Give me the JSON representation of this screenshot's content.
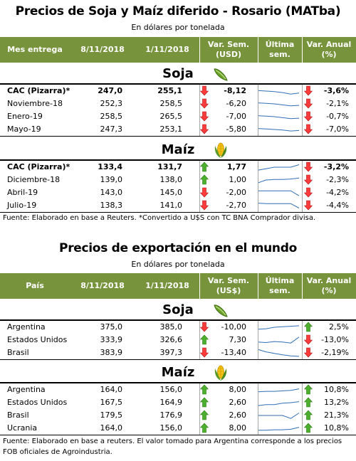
{
  "t1": {
    "title": "Precios de Soja y Maíz diferido - Rosario (MATba)",
    "subtitle": "En dólares por tonelada",
    "headers": [
      "Mes entrega",
      "8/11/2018",
      "1/11/2018",
      "Var. Sem.\n(USD)",
      "Última\nsem.",
      "Var. Anual\n(%)"
    ],
    "soja_label": "Soja",
    "maiz_label": "Maíz",
    "soja_rows": [
      {
        "name": "CAC (Pizarra)*",
        "d1": "247,0",
        "d2": "255,1",
        "var": "-8,12",
        "var_dir": "down",
        "ann": "-3,6%",
        "ann_dir": "down",
        "spark": [
          0.55,
          0.5,
          0.45,
          0.35,
          0.2,
          0.3
        ],
        "bold": true
      },
      {
        "name": "Noviembre-18",
        "d1": "252,3",
        "d2": "258,5",
        "var": "-6,20",
        "var_dir": "down",
        "ann": "-2,1%",
        "ann_dir": "down",
        "spark": [
          0.6,
          0.55,
          0.5,
          0.4,
          0.3,
          0.35
        ],
        "bold": false
      },
      {
        "name": "Enero-19",
        "d1": "258,5",
        "d2": "265,5",
        "var": "-7,00",
        "var_dir": "down",
        "ann": "-0,7%",
        "ann_dir": "down",
        "spark": [
          0.6,
          0.55,
          0.5,
          0.4,
          0.3,
          0.35
        ],
        "bold": false
      },
      {
        "name": "Mayo-19",
        "d1": "247,3",
        "d2": "253,1",
        "var": "-5,80",
        "var_dir": "down",
        "ann": "-7,0%",
        "ann_dir": "down",
        "spark": [
          0.6,
          0.55,
          0.5,
          0.45,
          0.35,
          0.4
        ],
        "bold": false
      }
    ],
    "maiz_rows": [
      {
        "name": "CAC (Pizarra)*",
        "d1": "133,4",
        "d2": "131,7",
        "var": "1,77",
        "var_dir": "up",
        "ann": "-3,2%",
        "ann_dir": "down",
        "spark": [
          0.2,
          0.35,
          0.5,
          0.5,
          0.5,
          0.75
        ],
        "bold": true
      },
      {
        "name": "Diciembre-18",
        "d1": "139,0",
        "d2": "138,0",
        "var": "1,00",
        "var_dir": "up",
        "ann": "-2,3%",
        "ann_dir": "down",
        "spark": [
          0.2,
          0.5,
          0.55,
          0.55,
          0.6,
          0.7
        ],
        "bold": false
      },
      {
        "name": "Abril-19",
        "d1": "143,0",
        "d2": "145,0",
        "var": "-2,00",
        "var_dir": "down",
        "ann": "-4,2%",
        "ann_dir": "down",
        "spark": [
          0.7,
          0.7,
          0.7,
          0.7,
          0.7,
          0.2
        ],
        "bold": false
      },
      {
        "name": "Julio-19",
        "d1": "138,3",
        "d2": "141,0",
        "var": "-2,70",
        "var_dir": "down",
        "ann": "-4,4%",
        "ann_dir": "down",
        "spark": [
          0.75,
          0.7,
          0.7,
          0.7,
          0.7,
          0.25
        ],
        "bold": false
      }
    ],
    "footnote": "Fuente: Elaborado en base a Reuters. *Convertido a U$S con TC BNA Comprador divisa."
  },
  "t2": {
    "title": "Precios de exportación en el mundo",
    "subtitle": "En dólares por tonelada",
    "headers": [
      "País",
      "8/11/2018",
      "1/11/2018",
      "Var. Sem.\n(US$)",
      "Última\nsem.",
      "Var. Anual\n(%)"
    ],
    "soja_label": "Soja",
    "maiz_label": "Maíz",
    "soja_rows": [
      {
        "name": "Argentina",
        "d1": "375,0",
        "d2": "385,0",
        "var": "-10,00",
        "var_dir": "down",
        "ann": "2,5%",
        "ann_dir": "up",
        "spark": [
          0.3,
          0.35,
          0.5,
          0.55,
          0.6,
          0.65
        ],
        "bold": false
      },
      {
        "name": "Estados Unidos",
        "d1": "333,9",
        "d2": "326,6",
        "var": "7,30",
        "var_dir": "up",
        "ann": "-13,0%",
        "ann_dir": "down",
        "spark": [
          0.3,
          0.25,
          0.35,
          0.3,
          0.2,
          0.8
        ],
        "bold": false
      },
      {
        "name": "Brasil",
        "d1": "383,9",
        "d2": "397,3",
        "var": "-13,40",
        "var_dir": "down",
        "ann": "-2,19%",
        "ann_dir": "down",
        "spark": [
          0.85,
          0.6,
          0.45,
          0.3,
          0.2,
          0.15
        ],
        "bold": false
      }
    ],
    "maiz_rows": [
      {
        "name": "Argentina",
        "d1": "164,0",
        "d2": "156,0",
        "var": "8,00",
        "var_dir": "up",
        "ann": "10,8%",
        "ann_dir": "up",
        "spark": [
          0.3,
          0.35,
          0.35,
          0.4,
          0.45,
          0.6
        ],
        "bold": false
      },
      {
        "name": "Estados Unidos",
        "d1": "167,5",
        "d2": "164,9",
        "var": "2,60",
        "var_dir": "up",
        "ann": "13,2%",
        "ann_dir": "up",
        "spark": [
          0.2,
          0.3,
          0.3,
          0.45,
          0.5,
          0.6
        ],
        "bold": false
      },
      {
        "name": "Brasil",
        "d1": "179,5",
        "d2": "176,9",
        "var": "2,60",
        "var_dir": "up",
        "ann": "21,3%",
        "ann_dir": "up",
        "spark": [
          0.5,
          0.5,
          0.5,
          0.5,
          0.2,
          0.75
        ],
        "bold": false
      },
      {
        "name": "Ucrania",
        "d1": "164,0",
        "d2": "156,0",
        "var": "8,00",
        "var_dir": "up",
        "ann": "10,8%",
        "ann_dir": "up",
        "spark": [
          0.3,
          0.3,
          0.35,
          0.35,
          0.4,
          0.6
        ],
        "bold": false
      }
    ],
    "footnote": "Fuente: Elaborado en base a reuters. El valor tomado para Argentina corresponde a los precios FOB oficiales de Agroindustria."
  },
  "colors": {
    "header_bg": "#77933c",
    "arrow_down": "#ff3b3b",
    "arrow_up": "#4caf2e",
    "sparkline": "#2f6fb5"
  },
  "icons": {
    "soja": "soybean-pod-icon",
    "maiz": "corn-cob-icon"
  }
}
